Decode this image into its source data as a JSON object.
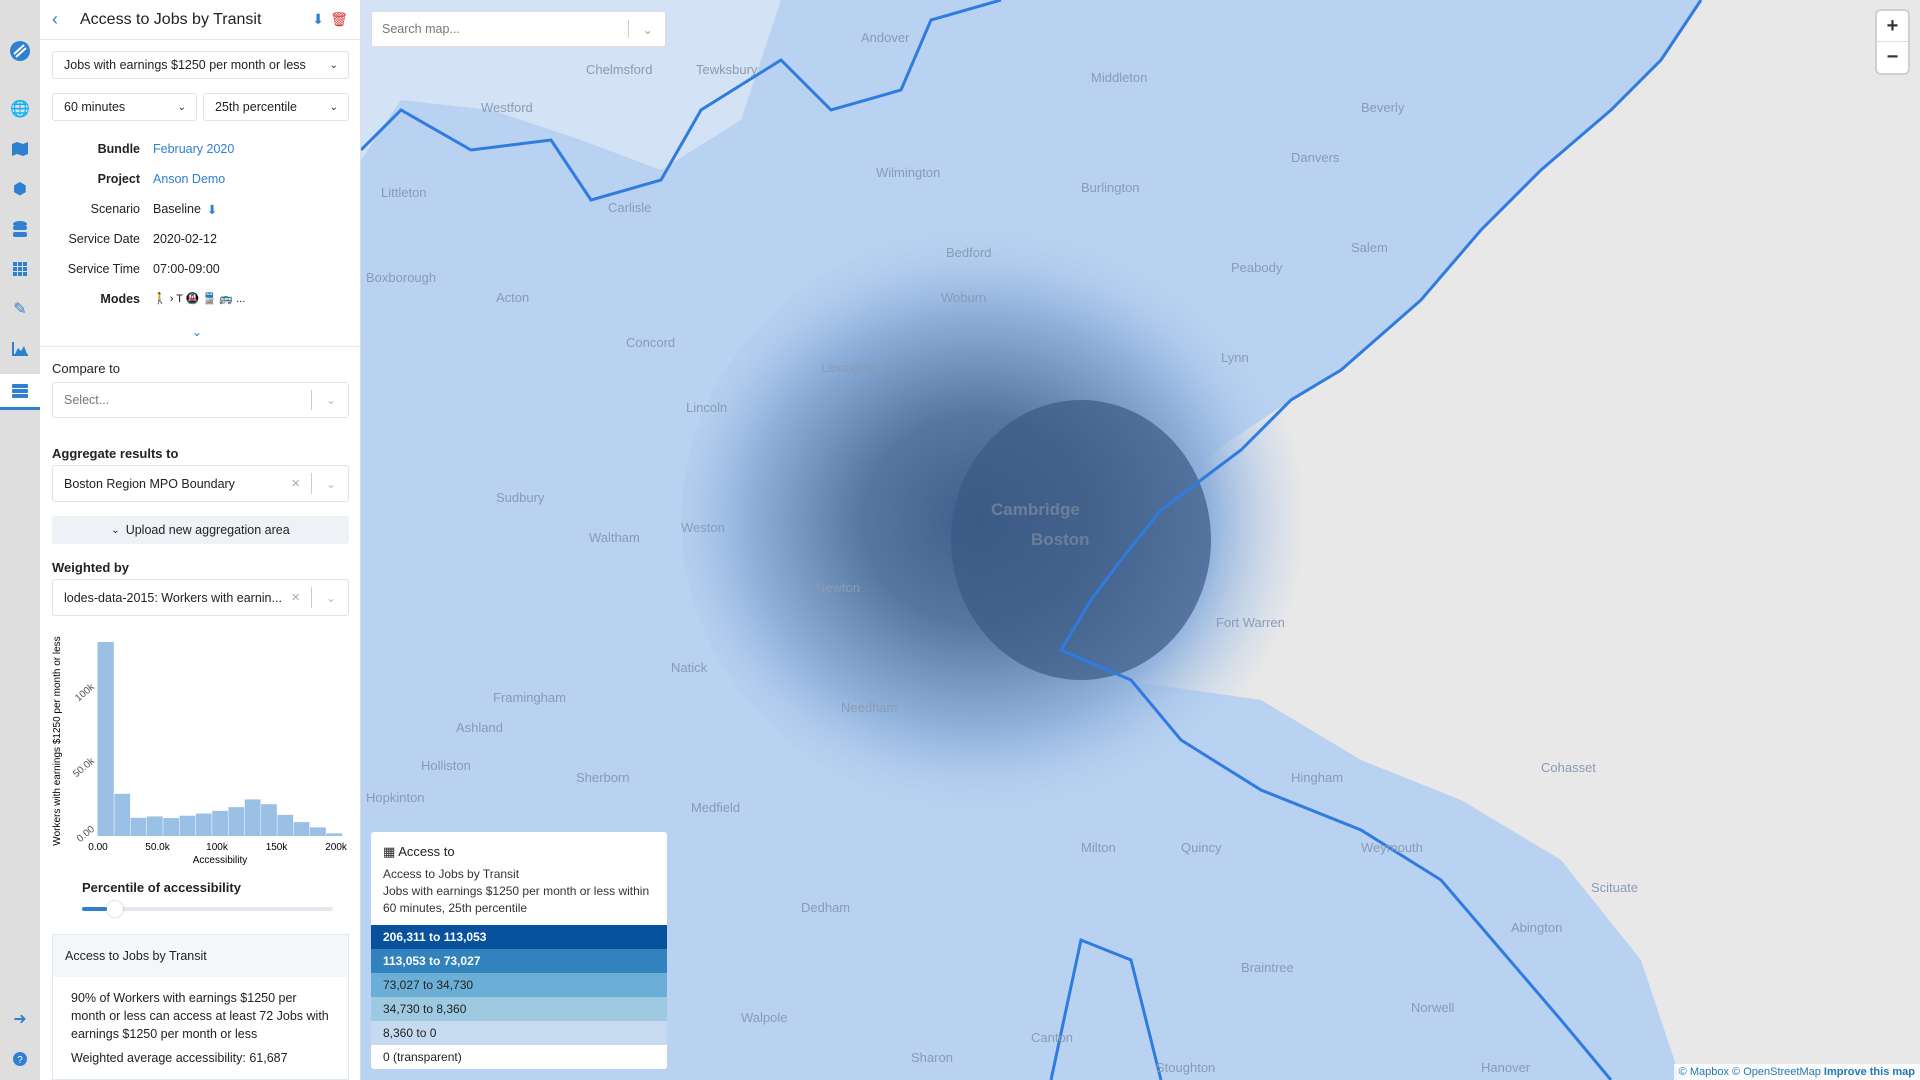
{
  "app": {
    "accent": "#2f80d1"
  },
  "iconbar": {
    "items": [
      "logo-icon",
      "globe-icon",
      "map-icon",
      "cubes-icon",
      "database-icon",
      "grid-icon",
      "pencil-icon",
      "area-chart-icon",
      "server-icon"
    ],
    "bottom": [
      "logout-icon",
      "help-icon"
    ]
  },
  "panel": {
    "title": "Access to Jobs by Transit",
    "opportunity": "Jobs with earnings $1250 per month or less",
    "time": "60 minutes",
    "percentile": "25th percentile",
    "meta": [
      {
        "k": "Bundle",
        "v": "February 2020"
      },
      {
        "k": "Project",
        "v": "Anson Demo"
      },
      {
        "k": "Scenario",
        "v": "Baseline"
      },
      {
        "k": "Service Date",
        "v": "2020-02-12"
      },
      {
        "k": "Service Time",
        "v": "07:00-09:00"
      },
      {
        "k": "Modes",
        "v": "🚶 › T 🚇 🚆 🚌 ..."
      }
    ],
    "compare_label": "Compare to",
    "compare_placeholder": "Select...",
    "aggregate_label": "Aggregate results to",
    "aggregate_value": "Boston Region MPO Boundary",
    "upload_label": "Upload new aggregation area",
    "weighted_label": "Weighted by",
    "weighted_value": "lodes-data-2015: Workers with earnin...",
    "percentile_label": "Percentile of accessibility",
    "percentile_slider": 10,
    "summary": {
      "title": "Access to Jobs by Transit",
      "text": "90% of Workers with earnings $1250 per month or less can access at least 72 Jobs with earnings $1250 per month or less",
      "avg": "Weighted average accessibility: 61,687"
    }
  },
  "chart_data": {
    "type": "bar",
    "xlabel": "Accessibility",
    "ylabel": "Workers with earnings $1250 per month or less",
    "x_ticks": [
      "0.00",
      "50.0k",
      "100k",
      "150k",
      "200k"
    ],
    "y_ticks": [
      "0.00",
      "50.0k",
      "100k"
    ],
    "bin_width": 13700,
    "values": [
      131000,
      28500,
      12300,
      13200,
      12100,
      13700,
      15200,
      17000,
      19500,
      24700,
      21500,
      14300,
      9400,
      5800,
      1800
    ],
    "xlim": [
      0,
      205000
    ],
    "ylim": [
      0,
      131000
    ],
    "color": "#9bc0e6"
  },
  "map": {
    "search_placeholder": "Search map...",
    "zoom_in": "+",
    "zoom_out": "−",
    "labels": [
      "Boston",
      "Cambridge",
      "Lexington",
      "Newton",
      "Waltham",
      "Framingham",
      "Chelmsford",
      "Wilmington",
      "Lincoln",
      "Concord",
      "Sudbury",
      "Weston",
      "Natick",
      "Ashland",
      "Hopkinton",
      "Needham",
      "Dedham",
      "Quincy",
      "Milton",
      "Braintree",
      "Weymouth",
      "Hingham",
      "Lynn",
      "Salem",
      "Peabody",
      "Woburn",
      "Burlington",
      "Bedford",
      "Acton",
      "Carlisle",
      "Tewksbury",
      "Andover",
      "Middleton",
      "Danvers",
      "Beverly",
      "Fort Warren",
      "Norwell",
      "Hanover",
      "Sharon",
      "Canton",
      "Westford",
      "Littleton",
      "Boxborough",
      "Sherborn",
      "Holliston",
      "Medfield",
      "Walpole",
      "Stoughton",
      "Scituate",
      "Cohasset",
      "Abington"
    ],
    "legend": {
      "title": "Access to",
      "name": "Access to Jobs by Transit",
      "desc": "Jobs with earnings $1250 per month or less within 60 minutes, 25th percentile",
      "bins": [
        {
          "label": "206,311 to 113,053",
          "color": "#08519c",
          "text": "#ffffff"
        },
        {
          "label": "113,053 to 73,027",
          "color": "#3182bd",
          "text": "#ffffff"
        },
        {
          "label": "73,027 to 34,730",
          "color": "#6baed6",
          "text": "#222222"
        },
        {
          "label": "34,730 to 8,360",
          "color": "#9ecae1",
          "text": "#222222"
        },
        {
          "label": "8,360 to 0",
          "color": "#c6dbef",
          "text": "#222222"
        },
        {
          "label": "0 (transparent)",
          "color": "#ffffff",
          "text": "#222222"
        }
      ]
    },
    "attribution": {
      "mapbox": "© Mapbox",
      "osm": "© OpenStreetMap",
      "improve": "Improve this map"
    }
  }
}
